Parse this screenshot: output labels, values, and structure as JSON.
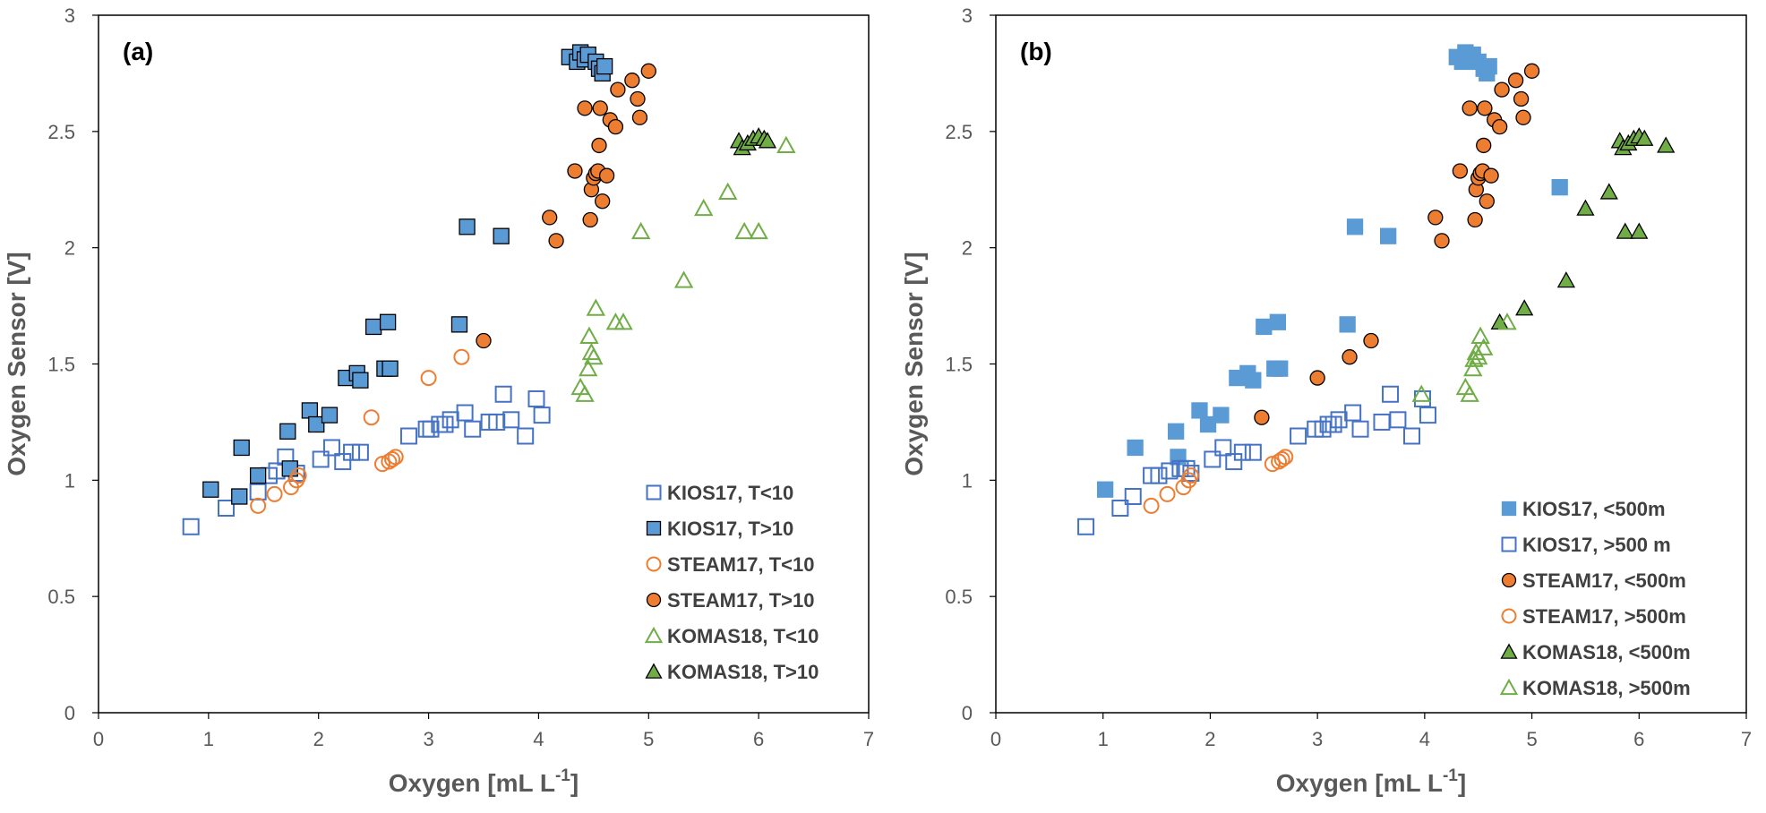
{
  "chart_data": [
    {
      "type": "scatter",
      "panel_label": "(a)",
      "xlabel": "Oxygen [mL L",
      "xlabel_sup": "-1",
      "xlabel_end": "]",
      "ylabel": "Oxygen Sensor [V]",
      "xlim": [
        0,
        7
      ],
      "ylim": [
        0,
        3
      ],
      "xticks": [
        "0",
        "1",
        "2",
        "3",
        "4",
        "5",
        "6",
        "7"
      ],
      "yticks": [
        "0",
        "0.5",
        "1",
        "1.5",
        "2",
        "2.5",
        "3"
      ],
      "grid": false,
      "legend_position": "bottom-right",
      "series": [
        {
          "name": "KIOS17, T<10",
          "marker": "square",
          "filled": false,
          "color": "#4472C4",
          "points": [
            [
              0.84,
              0.8
            ],
            [
              1.16,
              0.88
            ],
            [
              1.45,
              0.95
            ],
            [
              1.55,
              1.02
            ],
            [
              1.62,
              1.04
            ],
            [
              1.7,
              1.1
            ],
            [
              1.8,
              1.03
            ],
            [
              2.02,
              1.09
            ],
            [
              2.12,
              1.14
            ],
            [
              2.22,
              1.08
            ],
            [
              2.3,
              1.12
            ],
            [
              2.38,
              1.12
            ],
            [
              2.98,
              1.22
            ],
            [
              3.02,
              1.22
            ],
            [
              3.1,
              1.24
            ],
            [
              3.15,
              1.24
            ],
            [
              3.2,
              1.26
            ],
            [
              3.33,
              1.29
            ],
            [
              3.4,
              1.22
            ],
            [
              3.55,
              1.25
            ],
            [
              3.62,
              1.25
            ],
            [
              3.68,
              1.37
            ],
            [
              3.75,
              1.26
            ],
            [
              3.88,
              1.19
            ],
            [
              3.98,
              1.35
            ],
            [
              4.03,
              1.28
            ],
            [
              2.82,
              1.19
            ]
          ]
        },
        {
          "name": "KIOS17, T>10",
          "marker": "square",
          "filled": true,
          "color": "#5B9BD5",
          "points": [
            [
              1.02,
              0.96
            ],
            [
              1.28,
              0.93
            ],
            [
              1.3,
              1.14
            ],
            [
              1.45,
              1.02
            ],
            [
              1.72,
              1.21
            ],
            [
              1.74,
              1.05
            ],
            [
              1.92,
              1.3
            ],
            [
              1.98,
              1.24
            ],
            [
              2.1,
              1.28
            ],
            [
              2.25,
              1.44
            ],
            [
              2.35,
              1.46
            ],
            [
              2.38,
              1.43
            ],
            [
              2.5,
              1.66
            ],
            [
              2.6,
              1.48
            ],
            [
              2.65,
              1.48
            ],
            [
              2.63,
              1.68
            ],
            [
              3.28,
              1.67
            ],
            [
              3.35,
              2.09
            ],
            [
              3.66,
              2.05
            ],
            [
              4.28,
              2.82
            ],
            [
              4.35,
              2.8
            ],
            [
              4.38,
              2.84
            ],
            [
              4.42,
              2.81
            ],
            [
              4.45,
              2.83
            ],
            [
              4.52,
              2.8
            ],
            [
              4.55,
              2.77
            ],
            [
              4.58,
              2.75
            ],
            [
              4.6,
              2.78
            ]
          ]
        },
        {
          "name": "STEAM17, T<10",
          "marker": "circle",
          "filled": false,
          "color": "#ED7D31",
          "points": [
            [
              1.45,
              0.89
            ],
            [
              1.6,
              0.94
            ],
            [
              1.75,
              0.97
            ],
            [
              1.8,
              1.0
            ],
            [
              1.82,
              1.02
            ],
            [
              2.48,
              1.27
            ],
            [
              2.58,
              1.07
            ],
            [
              2.64,
              1.08
            ],
            [
              2.67,
              1.09
            ],
            [
              2.7,
              1.1
            ],
            [
              3.0,
              1.44
            ],
            [
              3.3,
              1.53
            ]
          ]
        },
        {
          "name": "STEAM17, T>10",
          "marker": "circle",
          "filled": true,
          "color": "#ED7D31",
          "points": [
            [
              3.5,
              1.6
            ],
            [
              4.1,
              2.13
            ],
            [
              4.16,
              2.03
            ],
            [
              4.33,
              2.33
            ],
            [
              4.42,
              2.6
            ],
            [
              4.47,
              2.12
            ],
            [
              4.48,
              2.25
            ],
            [
              4.5,
              2.3
            ],
            [
              4.52,
              2.32
            ],
            [
              4.54,
              2.33
            ],
            [
              4.55,
              2.44
            ],
            [
              4.56,
              2.6
            ],
            [
              4.58,
              2.2
            ],
            [
              4.62,
              2.31
            ],
            [
              4.65,
              2.55
            ],
            [
              4.7,
              2.52
            ],
            [
              4.72,
              2.68
            ],
            [
              4.85,
              2.72
            ],
            [
              4.9,
              2.64
            ],
            [
              4.92,
              2.56
            ],
            [
              5.0,
              2.76
            ]
          ]
        },
        {
          "name": "KOMAS18, T<10",
          "marker": "triangle",
          "filled": false,
          "color": "#70AD47",
          "points": [
            [
              4.38,
              1.4
            ],
            [
              4.42,
              1.37
            ],
            [
              4.45,
              1.48
            ],
            [
              4.46,
              1.62
            ],
            [
              4.48,
              1.55
            ],
            [
              4.5,
              1.53
            ],
            [
              4.52,
              1.74
            ],
            [
              4.7,
              1.68
            ],
            [
              4.77,
              1.68
            ],
            [
              4.93,
              2.07
            ],
            [
              5.32,
              1.86
            ],
            [
              5.5,
              2.17
            ],
            [
              5.72,
              2.24
            ],
            [
              5.87,
              2.07
            ],
            [
              6.0,
              2.07
            ],
            [
              6.25,
              2.44
            ]
          ]
        },
        {
          "name": "KOMAS18, T>10",
          "marker": "triangle",
          "filled": true,
          "color": "#70AD47",
          "points": [
            [
              5.82,
              2.46
            ],
            [
              5.85,
              2.43
            ],
            [
              5.9,
              2.45
            ],
            [
              5.95,
              2.47
            ],
            [
              6.0,
              2.48
            ],
            [
              6.05,
              2.47
            ],
            [
              6.08,
              2.46
            ]
          ]
        }
      ]
    },
    {
      "type": "scatter",
      "panel_label": "(b)",
      "xlabel": "Oxygen [mL L",
      "xlabel_sup": "-1",
      "xlabel_end": "]",
      "ylabel": "Oxygen Sensor [V]",
      "xlim": [
        0,
        7
      ],
      "ylim": [
        0,
        3
      ],
      "xticks": [
        "0",
        "1",
        "2",
        "3",
        "4",
        "5",
        "6",
        "7"
      ],
      "yticks": [
        "0",
        "0.5",
        "1",
        "1.5",
        "2",
        "2.5",
        "3"
      ],
      "grid": false,
      "legend_position": "bottom-right",
      "series": [
        {
          "name": "KIOS17, <500m",
          "marker": "square",
          "filled": true,
          "color": "#5B9BD5",
          "outline": "#5B9BD5",
          "points": [
            [
              1.02,
              0.96
            ],
            [
              1.3,
              1.14
            ],
            [
              1.68,
              1.21
            ],
            [
              1.7,
              1.1
            ],
            [
              1.9,
              1.3
            ],
            [
              1.98,
              1.24
            ],
            [
              2.1,
              1.28
            ],
            [
              2.25,
              1.44
            ],
            [
              2.35,
              1.46
            ],
            [
              2.4,
              1.43
            ],
            [
              2.5,
              1.66
            ],
            [
              2.6,
              1.48
            ],
            [
              2.65,
              1.48
            ],
            [
              2.63,
              1.68
            ],
            [
              3.28,
              1.67
            ],
            [
              3.35,
              2.09
            ],
            [
              3.66,
              2.05
            ],
            [
              4.3,
              2.82
            ],
            [
              4.35,
              2.8
            ],
            [
              4.38,
              2.84
            ],
            [
              4.45,
              2.83
            ],
            [
              4.5,
              2.8
            ],
            [
              4.55,
              2.77
            ],
            [
              4.58,
              2.75
            ],
            [
              4.6,
              2.78
            ],
            [
              5.26,
              2.26
            ]
          ]
        },
        {
          "name": "KIOS17, >500 m",
          "marker": "square",
          "filled": false,
          "color": "#4472C4",
          "points": [
            [
              0.84,
              0.8
            ],
            [
              1.16,
              0.88
            ],
            [
              1.28,
              0.93
            ],
            [
              1.45,
              1.02
            ],
            [
              1.52,
              1.02
            ],
            [
              1.62,
              1.04
            ],
            [
              1.72,
              1.05
            ],
            [
              1.78,
              1.05
            ],
            [
              1.82,
              1.03
            ],
            [
              2.02,
              1.09
            ],
            [
              2.12,
              1.14
            ],
            [
              2.22,
              1.08
            ],
            [
              2.3,
              1.12
            ],
            [
              2.4,
              1.12
            ],
            [
              2.82,
              1.19
            ],
            [
              2.98,
              1.22
            ],
            [
              3.05,
              1.22
            ],
            [
              3.1,
              1.24
            ],
            [
              3.15,
              1.24
            ],
            [
              3.2,
              1.26
            ],
            [
              3.33,
              1.29
            ],
            [
              3.4,
              1.22
            ],
            [
              3.6,
              1.25
            ],
            [
              3.68,
              1.37
            ],
            [
              3.75,
              1.26
            ],
            [
              3.88,
              1.19
            ],
            [
              3.98,
              1.35
            ],
            [
              4.03,
              1.28
            ]
          ]
        },
        {
          "name": "STEAM17, <500m",
          "marker": "circle",
          "filled": true,
          "color": "#ED7D31",
          "points": [
            [
              2.48,
              1.27
            ],
            [
              3.0,
              1.44
            ],
            [
              3.3,
              1.53
            ],
            [
              3.5,
              1.6
            ],
            [
              4.1,
              2.13
            ],
            [
              4.16,
              2.03
            ],
            [
              4.33,
              2.33
            ],
            [
              4.42,
              2.6
            ],
            [
              4.47,
              2.12
            ],
            [
              4.48,
              2.25
            ],
            [
              4.5,
              2.3
            ],
            [
              4.52,
              2.32
            ],
            [
              4.54,
              2.33
            ],
            [
              4.55,
              2.44
            ],
            [
              4.56,
              2.6
            ],
            [
              4.58,
              2.2
            ],
            [
              4.62,
              2.31
            ],
            [
              4.65,
              2.55
            ],
            [
              4.7,
              2.52
            ],
            [
              4.72,
              2.68
            ],
            [
              4.85,
              2.72
            ],
            [
              4.9,
              2.64
            ],
            [
              4.92,
              2.56
            ],
            [
              5.0,
              2.76
            ]
          ]
        },
        {
          "name": "STEAM17, >500m",
          "marker": "circle",
          "filled": false,
          "color": "#ED7D31",
          "points": [
            [
              1.45,
              0.89
            ],
            [
              1.6,
              0.94
            ],
            [
              1.75,
              0.97
            ],
            [
              1.8,
              1.0
            ],
            [
              1.82,
              1.02
            ],
            [
              2.58,
              1.07
            ],
            [
              2.64,
              1.08
            ],
            [
              2.67,
              1.09
            ],
            [
              2.7,
              1.1
            ]
          ]
        },
        {
          "name": "KOMAS18, <500m",
          "marker": "triangle",
          "filled": true,
          "color": "#70AD47",
          "points": [
            [
              4.7,
              1.68
            ],
            [
              4.93,
              1.74
            ],
            [
              5.32,
              1.86
            ],
            [
              5.5,
              2.17
            ],
            [
              5.72,
              2.24
            ],
            [
              5.87,
              2.07
            ],
            [
              6.0,
              2.07
            ],
            [
              6.25,
              2.44
            ],
            [
              5.82,
              2.46
            ],
            [
              5.85,
              2.43
            ],
            [
              5.9,
              2.45
            ],
            [
              5.95,
              2.47
            ],
            [
              6.0,
              2.48
            ],
            [
              6.05,
              2.47
            ]
          ]
        },
        {
          "name": "KOMAS18, >500m",
          "marker": "triangle",
          "filled": false,
          "color": "#70AD47",
          "points": [
            [
              3.97,
              1.37
            ],
            [
              4.38,
              1.4
            ],
            [
              4.42,
              1.37
            ],
            [
              4.45,
              1.48
            ],
            [
              4.46,
              1.52
            ],
            [
              4.48,
              1.55
            ],
            [
              4.5,
              1.53
            ],
            [
              4.52,
              1.62
            ],
            [
              4.55,
              1.57
            ],
            [
              4.77,
              1.68
            ]
          ]
        }
      ]
    }
  ]
}
